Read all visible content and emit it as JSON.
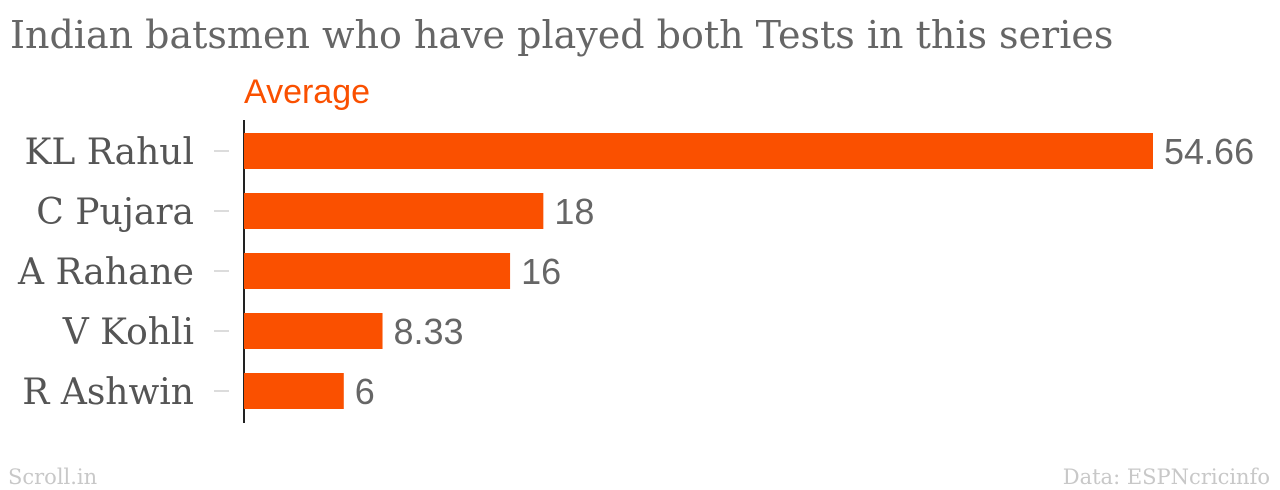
{
  "chart_data": {
    "type": "bar",
    "orientation": "horizontal",
    "title": "Indian batsmen who have played both Tests in this series",
    "series": [
      {
        "name": "Average",
        "values": [
          54.66,
          18,
          16,
          8.33,
          6
        ]
      }
    ],
    "categories": [
      "KL Rahul",
      "C Pujara",
      "A Rahane",
      "V Kohli",
      "R Ashwin"
    ],
    "value_labels": [
      "54.66",
      "18",
      "16",
      "8.33",
      "6"
    ],
    "xlim": [
      0,
      54.66
    ],
    "grid": false,
    "bar_color": "#fa5000"
  },
  "footer": {
    "source": "Scroll.in",
    "credit": "Data: ESPNcricinfo"
  }
}
